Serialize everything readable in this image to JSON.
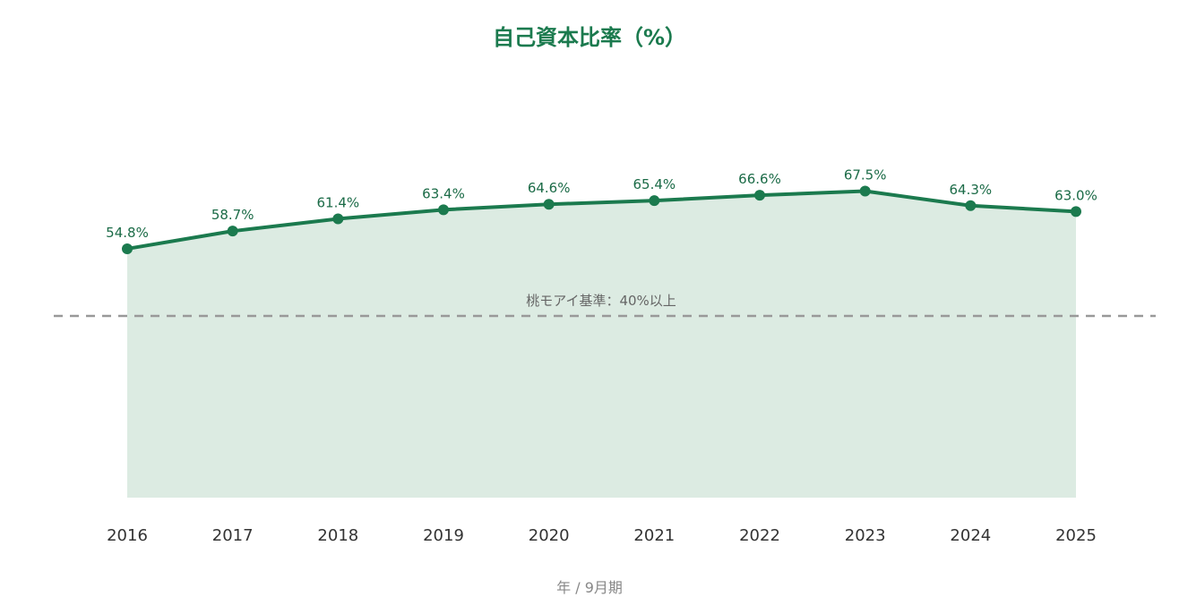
{
  "chart_data": {
    "type": "area",
    "title": "自己資本比率（%）",
    "xlabel": "年 / 9月期",
    "ylabel": "",
    "categories": [
      "2016",
      "2017",
      "2018",
      "2019",
      "2020",
      "2021",
      "2022",
      "2023",
      "2024",
      "2025"
    ],
    "series": [
      {
        "values": [
          54.8,
          58.7,
          61.4,
          63.4,
          64.6,
          65.4,
          66.6,
          67.5,
          64.3,
          63.0
        ],
        "labels": [
          "54.8%",
          "58.7%",
          "61.4%",
          "63.4%",
          "64.6%",
          "65.4%",
          "66.6%",
          "67.5%",
          "64.3%",
          "63.0%"
        ]
      }
    ],
    "ylim": [
      0,
      95
    ],
    "reference_line": {
      "value": 40,
      "label": "桃モアイ基準：40%以上",
      "style": "dashed"
    },
    "grid": false,
    "legend": "none",
    "colors": {
      "line": "#1b7a4e",
      "fill": "#dcebe2",
      "title": "#1b7a4e",
      "data_label": "#1b6b47",
      "tick": "#333333",
      "reference": "#999999",
      "reference_label": "#666666",
      "axis_title": "#888888"
    }
  }
}
